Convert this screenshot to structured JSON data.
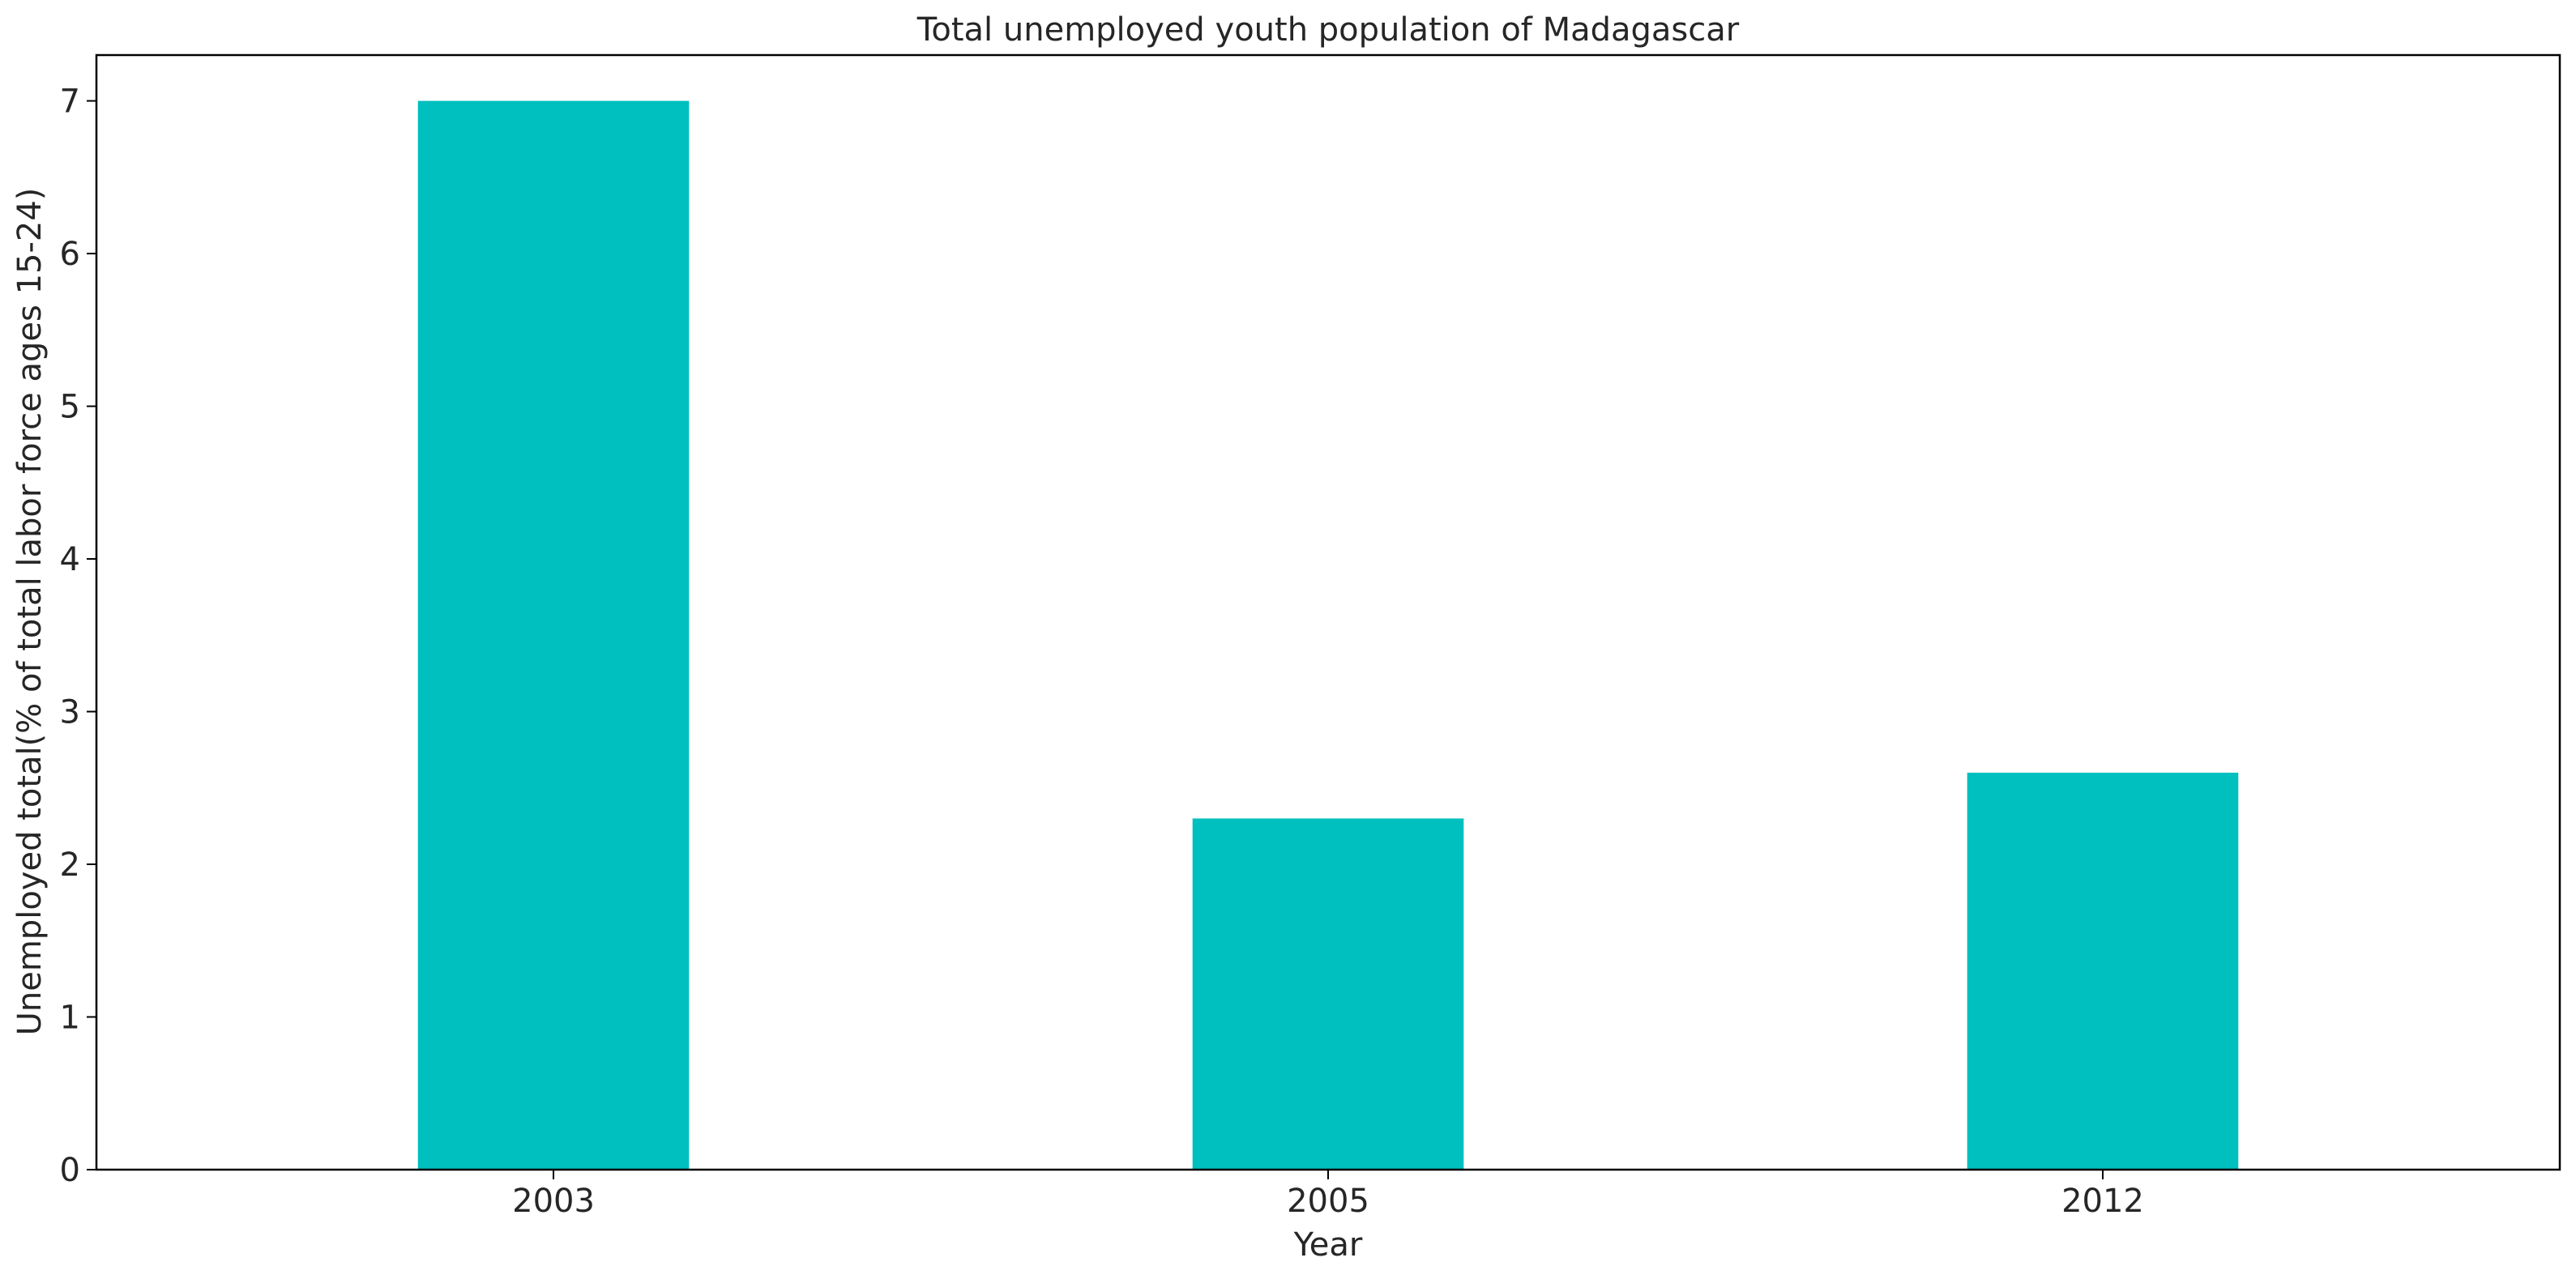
{
  "chart_data": {
    "type": "bar",
    "title": "Total unemployed youth population of Madagascar",
    "xlabel": "Year",
    "ylabel": "Unemployed total(% of total labor force ages 15-24)",
    "categories": [
      "2003",
      "2005",
      "2012"
    ],
    "values": [
      7.0,
      2.3,
      2.6
    ],
    "ylim": [
      0,
      7.3
    ],
    "yticks": [
      "0",
      "1",
      "2",
      "3",
      "4",
      "5",
      "6",
      "7"
    ],
    "bar_color": "#00bfbf",
    "grid": false,
    "legend": "none"
  }
}
